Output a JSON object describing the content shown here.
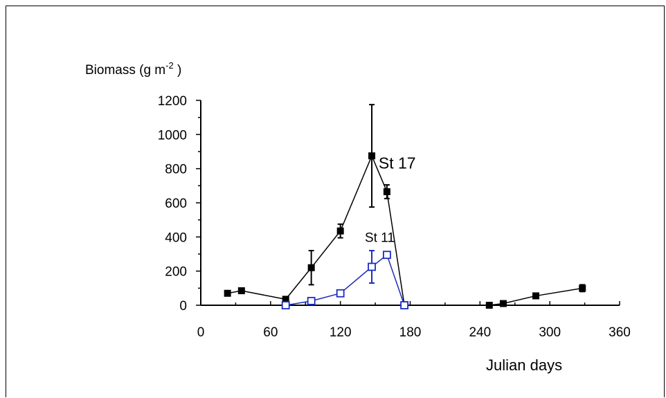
{
  "chart_data": {
    "type": "line",
    "title": "",
    "ylabel": "Biomass (g m-2 )",
    "ylabel_parts": {
      "prefix": "Biomass (g m",
      "sup": "-2",
      "suffix": " )"
    },
    "xlabel": "Julian days",
    "xlim": [
      0,
      360
    ],
    "ylim": [
      0,
      1200
    ],
    "x_ticks": [
      0,
      60,
      120,
      180,
      240,
      300,
      360
    ],
    "y_ticks": [
      0,
      200,
      400,
      600,
      800,
      1000,
      1200
    ],
    "grid": false,
    "legend": "none",
    "series": [
      {
        "name": "St 17",
        "color": "#000000",
        "marker": "filled-square",
        "x": [
          23,
          35,
          73,
          95,
          120,
          147,
          160,
          175,
          248,
          260,
          288,
          328
        ],
        "y": [
          70,
          85,
          35,
          220,
          435,
          875,
          665,
          0,
          0,
          10,
          55,
          100
        ],
        "err": [
          15,
          10,
          10,
          100,
          40,
          300,
          40,
          0,
          0,
          5,
          10,
          20
        ]
      },
      {
        "name": "St 11",
        "color": "#1a2bbf",
        "marker": "open-square",
        "x": [
          73,
          95,
          120,
          147,
          160,
          175
        ],
        "y": [
          0,
          25,
          70,
          225,
          295,
          0
        ],
        "err": [
          0,
          0,
          0,
          95,
          0,
          0
        ]
      }
    ]
  }
}
